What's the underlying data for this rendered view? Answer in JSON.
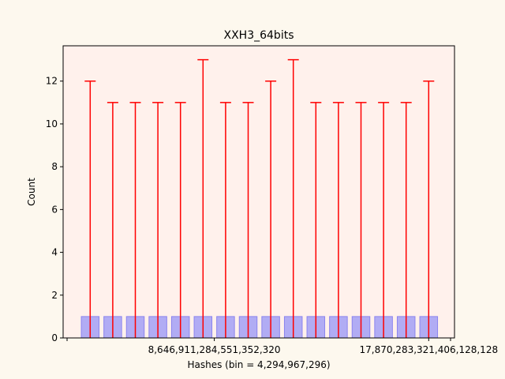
{
  "chart_data": {
    "type": "bar",
    "title": "XXH3_64bits",
    "xlabel": "Hashes (bin = 4,294,967,296)",
    "ylabel": "Count",
    "ylim": [
      0,
      13.65
    ],
    "yticks": [
      0,
      2,
      4,
      6,
      8,
      10,
      12
    ],
    "xtick_labels": [
      {
        "label": "8,646,911,284,551,352,320",
        "bar_index": 5.5
      },
      {
        "label": "17,870,283,321,406,128,128",
        "bar_index": 15
      }
    ],
    "grid": false,
    "bar_count": 16,
    "values": [
      1,
      1,
      1,
      1,
      1,
      1,
      1,
      1,
      1,
      1,
      1,
      1,
      1,
      1,
      1,
      1
    ],
    "error_upper": [
      12,
      11,
      11,
      11,
      11,
      13,
      11,
      11,
      12,
      13,
      11,
      11,
      11,
      11,
      11,
      12
    ],
    "colors": {
      "background": "#fdf8ee",
      "plot_background": "#fff1ec",
      "bar_fill": "#b1acf4",
      "bar_edge": "#8a84ef",
      "error_bar": "#ff0000"
    }
  }
}
